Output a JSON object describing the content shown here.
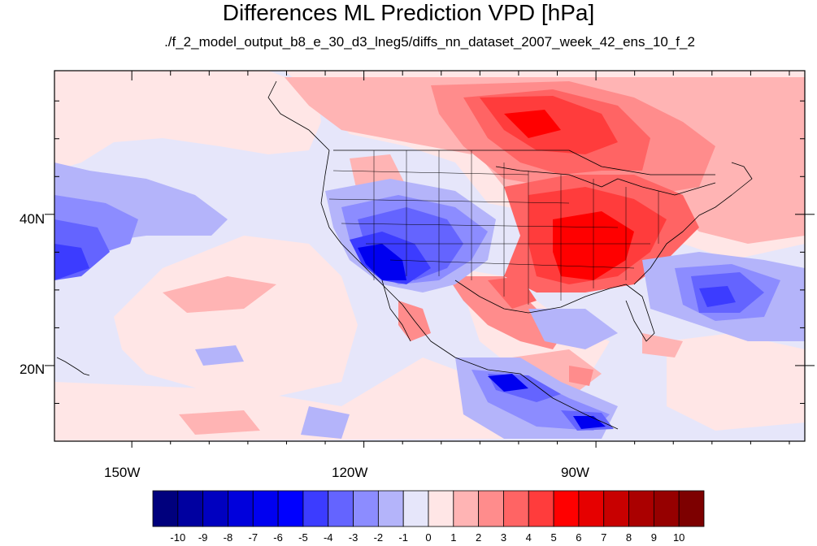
{
  "title": "Differences ML Prediction VPD [hPa]",
  "subtitle": "./f_2_model_output_b8_e_30_d3_lneg5/diffs_nn_dataset_2007_week_42_ens_10_f_2",
  "axes": {
    "lat_labels": [
      "40N",
      "20N"
    ],
    "lon_labels": [
      "150W",
      "120W",
      "90W"
    ],
    "lon_range": [
      -160,
      -63
    ],
    "lat_range": [
      10,
      59
    ]
  },
  "colorbar": {
    "labels": [
      "-10",
      "-9",
      "-8",
      "-7",
      "-6",
      "-5",
      "-4",
      "-3",
      "-2",
      "-1",
      "0",
      "1",
      "2",
      "3",
      "4",
      "5",
      "6",
      "7",
      "8",
      "9",
      "10"
    ],
    "colors": [
      "#00007d",
      "#0000a0",
      "#0000c0",
      "#0000dc",
      "#0000f0",
      "#0000ff",
      "#3c3cff",
      "#6464ff",
      "#8c8cff",
      "#b4b4fa",
      "#e6e6fa",
      "#ffe6e6",
      "#ffb4b4",
      "#ff8c8c",
      "#ff6464",
      "#ff3c3c",
      "#ff0000",
      "#e60000",
      "#c80000",
      "#aa0000",
      "#960000",
      "#7d0000"
    ]
  },
  "field": {
    "type": "diverging contour fill",
    "units": "hPa",
    "background_level": "#e6e6fa"
  }
}
